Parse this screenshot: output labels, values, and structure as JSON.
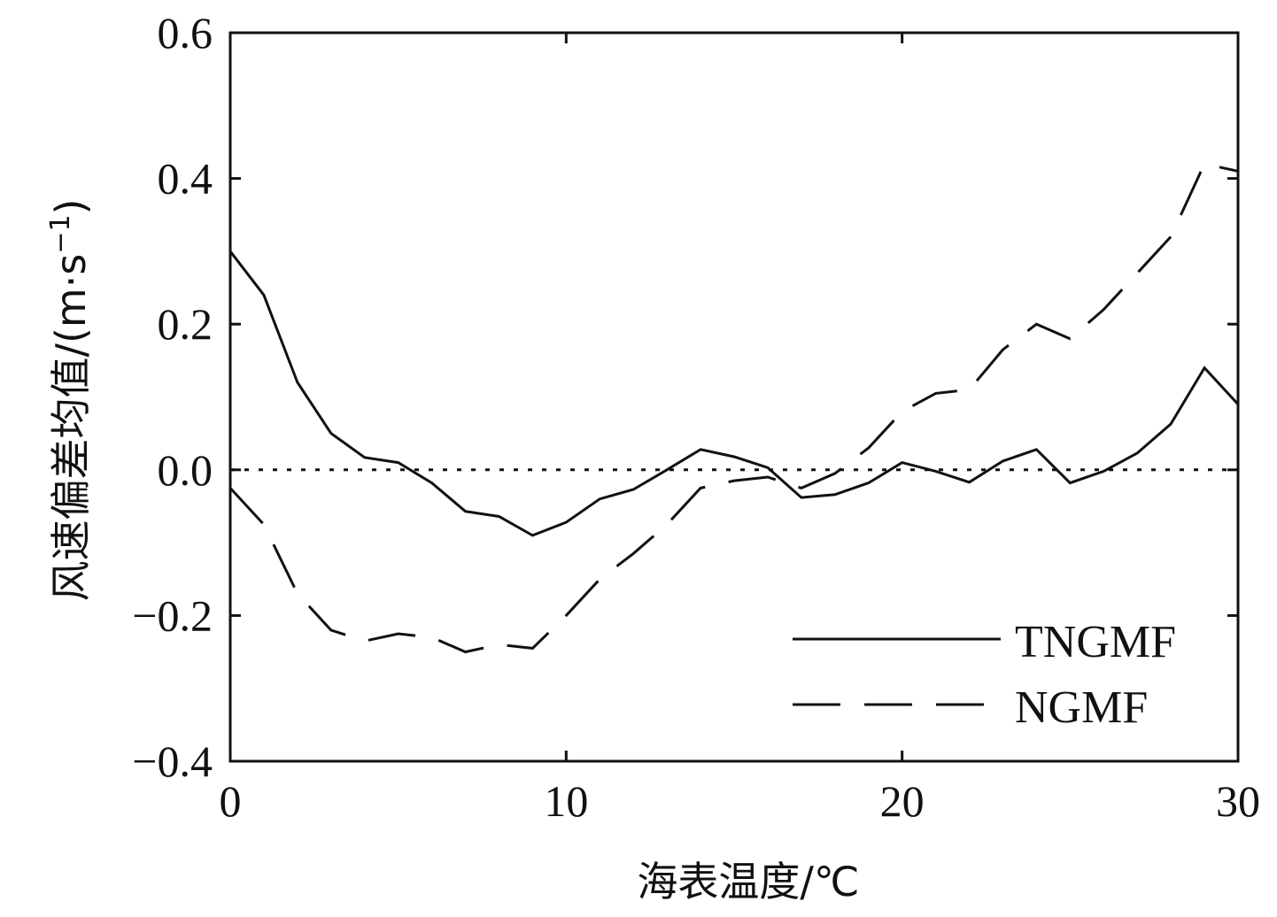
{
  "chart_data": {
    "type": "line",
    "xlabel": "海表温度/℃",
    "ylabel": "风速偏差均值/(m·s",
    "ylabel_sup": "−1",
    "ylabel_close": ")",
    "xlim": [
      0,
      30
    ],
    "ylim": [
      -0.4,
      0.6
    ],
    "xticks": [
      0,
      10,
      20,
      30
    ],
    "xtick_labels": [
      "0",
      "10",
      "20",
      "30"
    ],
    "yticks": [
      0.6,
      0.4,
      0.2,
      0.0,
      -0.2,
      -0.4
    ],
    "ytick_labels": [
      "0.6",
      "0.4",
      "0.2",
      "0.0",
      "−0.2",
      "−0.4"
    ],
    "reference_line": {
      "y": 0,
      "style": "dotted"
    },
    "legend_position": "bottom-right",
    "grid": false,
    "x": [
      0,
      1,
      2,
      3,
      4,
      5,
      6,
      7,
      8,
      9,
      10,
      11,
      12,
      13,
      14,
      15,
      16,
      17,
      18,
      19,
      20,
      21,
      22,
      23,
      24,
      25,
      26,
      27,
      28,
      29,
      30
    ],
    "series": [
      {
        "name": "TNGMF",
        "style": "solid",
        "values": [
          0.3,
          0.24,
          0.12,
          0.05,
          0.017,
          0.01,
          -0.018,
          -0.057,
          -0.064,
          -0.09,
          -0.072,
          -0.04,
          -0.027,
          0.0,
          0.028,
          0.018,
          0.003,
          -0.038,
          -0.034,
          -0.018,
          0.01,
          -0.002,
          -0.017,
          0.012,
          0.028,
          -0.018,
          -0.002,
          0.023,
          0.063,
          0.14,
          0.09
        ]
      },
      {
        "name": "NGMF",
        "style": "dashed",
        "values": [
          -0.025,
          -0.075,
          -0.17,
          -0.22,
          -0.235,
          -0.225,
          -0.23,
          -0.25,
          -0.24,
          -0.245,
          -0.2,
          -0.15,
          -0.115,
          -0.075,
          -0.025,
          -0.015,
          -0.01,
          -0.025,
          -0.005,
          0.03,
          0.08,
          0.105,
          0.11,
          0.165,
          0.2,
          0.18,
          0.22,
          0.27,
          0.32,
          0.42,
          0.41
        ]
      }
    ]
  }
}
